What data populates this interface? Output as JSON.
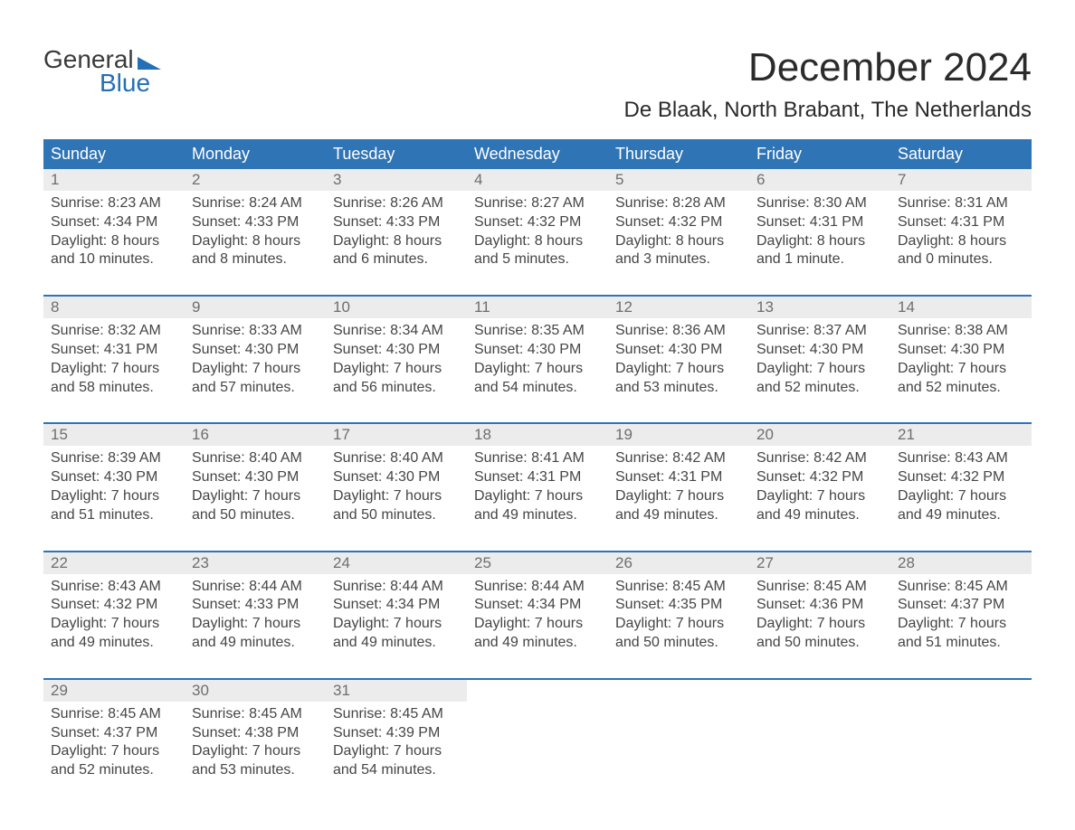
{
  "logo": {
    "line1": "General",
    "line2": "Blue"
  },
  "title": "December 2024",
  "location": "De Blaak, North Brabant, The Netherlands",
  "colors": {
    "header_bg": "#2f74b5",
    "header_text": "#ffffff",
    "daynum_bg": "#ececec",
    "daynum_text": "#6e6e6e",
    "body_text": "#454545",
    "accent": "#246fb5",
    "background": "#ffffff"
  },
  "fonts": {
    "month_title_size": 44,
    "location_size": 24,
    "header_size": 18,
    "daynum_size": 17,
    "cell_size": 16
  },
  "day_headers": [
    "Sunday",
    "Monday",
    "Tuesday",
    "Wednesday",
    "Thursday",
    "Friday",
    "Saturday"
  ],
  "weeks": [
    [
      {
        "n": "1",
        "sr": "8:23 AM",
        "ss": "4:34 PM",
        "dl": "8 hours and 10 minutes."
      },
      {
        "n": "2",
        "sr": "8:24 AM",
        "ss": "4:33 PM",
        "dl": "8 hours and 8 minutes."
      },
      {
        "n": "3",
        "sr": "8:26 AM",
        "ss": "4:33 PM",
        "dl": "8 hours and 6 minutes."
      },
      {
        "n": "4",
        "sr": "8:27 AM",
        "ss": "4:32 PM",
        "dl": "8 hours and 5 minutes."
      },
      {
        "n": "5",
        "sr": "8:28 AM",
        "ss": "4:32 PM",
        "dl": "8 hours and 3 minutes."
      },
      {
        "n": "6",
        "sr": "8:30 AM",
        "ss": "4:31 PM",
        "dl": "8 hours and 1 minute."
      },
      {
        "n": "7",
        "sr": "8:31 AM",
        "ss": "4:31 PM",
        "dl": "8 hours and 0 minutes."
      }
    ],
    [
      {
        "n": "8",
        "sr": "8:32 AM",
        "ss": "4:31 PM",
        "dl": "7 hours and 58 minutes."
      },
      {
        "n": "9",
        "sr": "8:33 AM",
        "ss": "4:30 PM",
        "dl": "7 hours and 57 minutes."
      },
      {
        "n": "10",
        "sr": "8:34 AM",
        "ss": "4:30 PM",
        "dl": "7 hours and 56 minutes."
      },
      {
        "n": "11",
        "sr": "8:35 AM",
        "ss": "4:30 PM",
        "dl": "7 hours and 54 minutes."
      },
      {
        "n": "12",
        "sr": "8:36 AM",
        "ss": "4:30 PM",
        "dl": "7 hours and 53 minutes."
      },
      {
        "n": "13",
        "sr": "8:37 AM",
        "ss": "4:30 PM",
        "dl": "7 hours and 52 minutes."
      },
      {
        "n": "14",
        "sr": "8:38 AM",
        "ss": "4:30 PM",
        "dl": "7 hours and 52 minutes."
      }
    ],
    [
      {
        "n": "15",
        "sr": "8:39 AM",
        "ss": "4:30 PM",
        "dl": "7 hours and 51 minutes."
      },
      {
        "n": "16",
        "sr": "8:40 AM",
        "ss": "4:30 PM",
        "dl": "7 hours and 50 minutes."
      },
      {
        "n": "17",
        "sr": "8:40 AM",
        "ss": "4:30 PM",
        "dl": "7 hours and 50 minutes."
      },
      {
        "n": "18",
        "sr": "8:41 AM",
        "ss": "4:31 PM",
        "dl": "7 hours and 49 minutes."
      },
      {
        "n": "19",
        "sr": "8:42 AM",
        "ss": "4:31 PM",
        "dl": "7 hours and 49 minutes."
      },
      {
        "n": "20",
        "sr": "8:42 AM",
        "ss": "4:32 PM",
        "dl": "7 hours and 49 minutes."
      },
      {
        "n": "21",
        "sr": "8:43 AM",
        "ss": "4:32 PM",
        "dl": "7 hours and 49 minutes."
      }
    ],
    [
      {
        "n": "22",
        "sr": "8:43 AM",
        "ss": "4:32 PM",
        "dl": "7 hours and 49 minutes."
      },
      {
        "n": "23",
        "sr": "8:44 AM",
        "ss": "4:33 PM",
        "dl": "7 hours and 49 minutes."
      },
      {
        "n": "24",
        "sr": "8:44 AM",
        "ss": "4:34 PM",
        "dl": "7 hours and 49 minutes."
      },
      {
        "n": "25",
        "sr": "8:44 AM",
        "ss": "4:34 PM",
        "dl": "7 hours and 49 minutes."
      },
      {
        "n": "26",
        "sr": "8:45 AM",
        "ss": "4:35 PM",
        "dl": "7 hours and 50 minutes."
      },
      {
        "n": "27",
        "sr": "8:45 AM",
        "ss": "4:36 PM",
        "dl": "7 hours and 50 minutes."
      },
      {
        "n": "28",
        "sr": "8:45 AM",
        "ss": "4:37 PM",
        "dl": "7 hours and 51 minutes."
      }
    ],
    [
      {
        "n": "29",
        "sr": "8:45 AM",
        "ss": "4:37 PM",
        "dl": "7 hours and 52 minutes."
      },
      {
        "n": "30",
        "sr": "8:45 AM",
        "ss": "4:38 PM",
        "dl": "7 hours and 53 minutes."
      },
      {
        "n": "31",
        "sr": "8:45 AM",
        "ss": "4:39 PM",
        "dl": "7 hours and 54 minutes."
      },
      null,
      null,
      null,
      null
    ]
  ],
  "labels": {
    "sunrise": "Sunrise:",
    "sunset": "Sunset:",
    "daylight": "Daylight:"
  }
}
